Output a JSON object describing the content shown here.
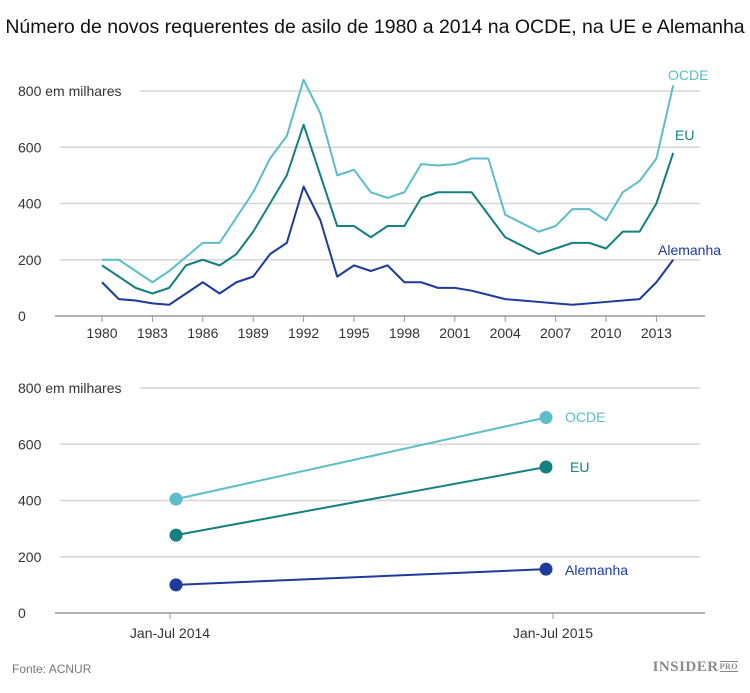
{
  "title": "Número de novos requerentes de asilo de 1980 a 2014 na OCDE, na UE e Alemanha",
  "source": "Fonte: ACNUR",
  "logo": {
    "main": "INSIDER",
    "sub": "PRO"
  },
  "colors": {
    "OCDE": "#5dbdc9",
    "EU": "#14807f",
    "Alemanha": "#1d3a9c",
    "grid": "#d6d6d6",
    "axis": "#999999"
  },
  "chart_data": [
    {
      "type": "line",
      "ylabel_top": "800 em milhares",
      "ylim": [
        0,
        800
      ],
      "yticks": [
        0,
        200,
        400,
        600,
        800
      ],
      "ytick_labels": [
        "0",
        "200",
        "400",
        "600",
        "800 em milhares"
      ],
      "xlim": [
        1978.5,
        2015
      ],
      "xticks": [
        1980,
        1983,
        1986,
        1989,
        1992,
        1995,
        1998,
        2001,
        2004,
        2007,
        2010,
        2013
      ],
      "xtick_labels": [
        "1980",
        "1983",
        "1986",
        "1989",
        "1992",
        "1995",
        "1998",
        "2001",
        "2004",
        "2007",
        "2010",
        "2013"
      ],
      "grid": true,
      "x": [
        1980,
        1981,
        1982,
        1983,
        1984,
        1985,
        1986,
        1987,
        1988,
        1989,
        1990,
        1991,
        1992,
        1993,
        1994,
        1995,
        1996,
        1997,
        1998,
        1999,
        2000,
        2001,
        2002,
        2003,
        2004,
        2005,
        2006,
        2007,
        2008,
        2009,
        2010,
        2011,
        2012,
        2013,
        2014
      ],
      "series": [
        {
          "name": "OCDE",
          "values": [
            200,
            200,
            160,
            120,
            160,
            210,
            260,
            260,
            350,
            440,
            560,
            640,
            840,
            720,
            500,
            520,
            440,
            420,
            440,
            540,
            535,
            540,
            560,
            560,
            360,
            330,
            300,
            320,
            380,
            380,
            340,
            440,
            480,
            560,
            820
          ]
        },
        {
          "name": "EU",
          "values": [
            180,
            140,
            100,
            80,
            100,
            180,
            200,
            180,
            220,
            300,
            400,
            500,
            680,
            500,
            320,
            320,
            280,
            320,
            320,
            420,
            440,
            440,
            440,
            360,
            280,
            250,
            220,
            240,
            260,
            260,
            240,
            300,
            300,
            400,
            580
          ]
        },
        {
          "name": "Alemanha",
          "values": [
            120,
            60,
            55,
            45,
            40,
            80,
            120,
            80,
            120,
            140,
            220,
            260,
            460,
            340,
            140,
            180,
            160,
            180,
            120,
            120,
            100,
            100,
            90,
            75,
            60,
            55,
            50,
            45,
            40,
            45,
            50,
            55,
            60,
            120,
            200
          ]
        }
      ]
    },
    {
      "type": "line",
      "ylim": [
        0,
        800
      ],
      "yticks": [
        0,
        200,
        400,
        600,
        800
      ],
      "ytick_labels": [
        "0",
        "200",
        "400",
        "600",
        "800 em milhares"
      ],
      "categories": [
        "Jan-Jul 2014",
        "Jan-Jul 2015"
      ],
      "grid": true,
      "series": [
        {
          "name": "OCDE",
          "values": [
            405,
            695
          ]
        },
        {
          "name": "EU",
          "values": [
            277,
            519
          ]
        },
        {
          "name": "Alemanha",
          "values": [
            100,
            156
          ]
        }
      ]
    }
  ]
}
